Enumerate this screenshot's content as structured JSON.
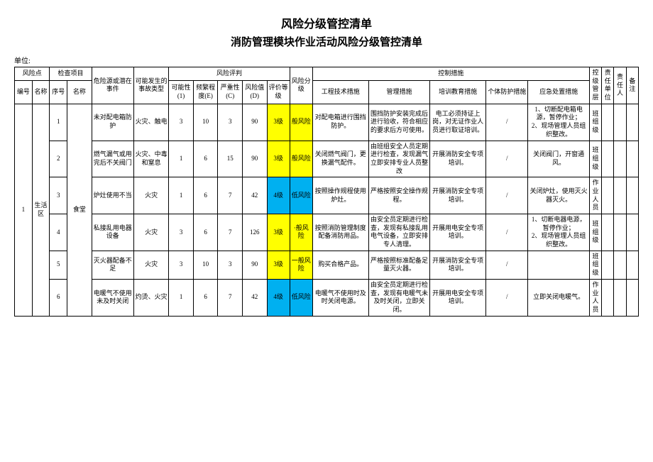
{
  "title1": "风险分级管控清单",
  "title2": "消防管理模块作业活动风险分级管控清单",
  "unit_label": "单位:",
  "colors": {
    "yellow": "#ffff00",
    "blue": "#00b0f0",
    "border": "#000000",
    "background": "#ffffff",
    "text": "#000000"
  },
  "headers": {
    "risk_point": "风险点",
    "check_item": "检查项目",
    "hazard_source": "危险源或潜在事件",
    "possible_accident": "可能发生的事故类型",
    "risk_eval": "风险评判",
    "possibility": "可能性(1)",
    "frequency": "频繁程度(E)",
    "severity": "严重性(C)",
    "risk_value": "风险值(D)",
    "eval_grade": "评价等级",
    "risk_level": "风险分级",
    "control_measures": "控制措施",
    "eng_tech": "工程技术措施",
    "management": "管理措施",
    "training": "培训教育措施",
    "ppe": "个体防护措施",
    "emergency": "应急处置措施",
    "control_level": "控级管层",
    "resp_unit": "责任单位",
    "resp_person": "责任人",
    "remark": "备注",
    "id": "编号",
    "name": "名称",
    "seq": "序号"
  },
  "point": {
    "id": "1",
    "name": "生活区"
  },
  "checkitem": {
    "seq": "",
    "name": "食堂"
  },
  "rows": [
    {
      "seq": "1",
      "hazard": "未对配电箱防护",
      "accident": "火灾、触电",
      "L": "3",
      "E": "10",
      "C": "3",
      "D": "90",
      "grade": "3级",
      "grade_color": "yellow",
      "level": "般风险",
      "level_color": "yellow",
      "eng": "对配电箱进行围挡防护。",
      "mgmt": "围挡防护安装完成后进行验收，符合相应的要求后方可使用。",
      "train": "电工必须持证上岗，对无证作业人员进行取证培训。",
      "ppe": "/",
      "emergency": "1、切断配电箱电源，暂停作业；\n2、现场管理人员组织整改。",
      "ctrl": "班组级"
    },
    {
      "seq": "2",
      "hazard": "燃气漏气或用完后不关阀门",
      "accident": "火灾、中毒和窒息",
      "L": "1",
      "E": "6",
      "C": "15",
      "D": "90",
      "grade": "3级",
      "grade_color": "yellow",
      "level": "般风险",
      "level_color": "yellow",
      "eng": "关闭燃气阀门，更换漏气配件。",
      "mgmt": "由班组安全人员定期进行检查，发现漏气立即安排专业人员整改",
      "train": "开展消防安全专项培训。",
      "ppe": "/",
      "emergency": "关闭阀门，开窗通风。",
      "ctrl": "班组级"
    },
    {
      "seq": "3",
      "hazard": "炉灶使用不当",
      "accident": "火灾",
      "L": "1",
      "E": "6",
      "C": "7",
      "D": "42",
      "grade": "4级",
      "grade_color": "blue",
      "level": "低风险",
      "level_color": "blue",
      "eng": "按照操作规程使用炉灶。",
      "mgmt": "严格按照安全操作规程。",
      "train": "开展消防安全专项培训。",
      "ppe": "/",
      "emergency": "关闭炉灶，使用灭火器灭火。",
      "ctrl": "作业人员"
    },
    {
      "seq": "4",
      "hazard": "私接乱用电器设备",
      "accident": "火灾",
      "L": "3",
      "E": "6",
      "C": "7",
      "D": "126",
      "grade": "3级",
      "grade_color": "yellow",
      "level": "·般风险",
      "level_color": "yellow",
      "eng": "按照消防管理制度配备消防用品。",
      "mgmt": "由安全员定期进行检查，发现有私接乱用电气设备，立即安排专人清理。",
      "train": "开展用电安全专项培训。",
      "ppe": "/",
      "emergency": "1、切断电器电源，暂停作业；\n2、现场管理人员组织整改。",
      "ctrl": "班组级"
    },
    {
      "seq": "5",
      "hazard": "灭火器配备不足",
      "accident": "火灾",
      "L": "3",
      "E": "10",
      "C": "3",
      "D": "90",
      "grade": "3级",
      "grade_color": "yellow",
      "level": "一般风险",
      "level_color": "yellow",
      "eng": "购买合格产品。",
      "mgmt": "严格按照标准配备足量灭火器。",
      "train": "开展消防安全专项培训。",
      "ppe": "/",
      "emergency": "",
      "ctrl": "班组级"
    },
    {
      "seq": "6",
      "hazard": "电暖气不使用未及时关闭",
      "accident": "灼烫、火灾",
      "L": "1",
      "E": "6",
      "C": "7",
      "D": "42",
      "grade": "4级",
      "grade_color": "blue",
      "level": "低风险",
      "level_color": "blue",
      "eng": "电暖气不使用时及时关闭电源。",
      "mgmt": "由安全员定期进行检查，发现有电暖气未及时关闭，立即关闭。",
      "train": "开展用电安全专项培训。",
      "ppe": "/",
      "emergency": "立即关闭电暖气。",
      "ctrl": "作业人员"
    }
  ]
}
